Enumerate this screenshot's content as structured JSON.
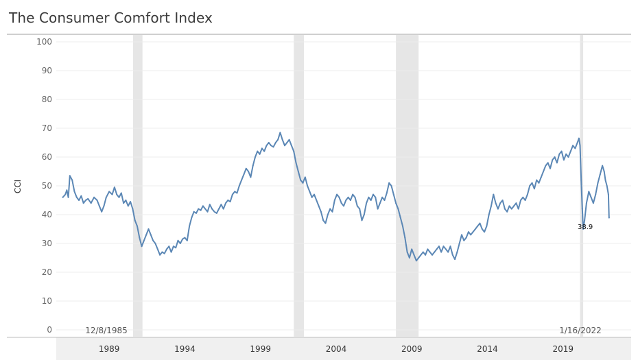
{
  "chart_data": {
    "type": "line",
    "title": "The Consumer Comfort Index",
    "ylabel": "CCI",
    "xlabel": "",
    "ylim": [
      0,
      100
    ],
    "xlim": [
      1985.5,
      2023.5
    ],
    "y_ticks": [
      "0",
      "10",
      "20",
      "30",
      "40",
      "50",
      "60",
      "70",
      "80",
      "90",
      "100"
    ],
    "x_ticks": [
      {
        "x": 1989,
        "label": "1989"
      },
      {
        "x": 1994,
        "label": "1994"
      },
      {
        "x": 1999,
        "label": "1999"
      },
      {
        "x": 2004,
        "label": "2004"
      },
      {
        "x": 2009,
        "label": "2009"
      },
      {
        "x": 2014,
        "label": "2014"
      },
      {
        "x": 2019,
        "label": "2019"
      }
    ],
    "grid": true,
    "colors": {
      "line": "#5b87b5",
      "recession": "#e6e6e6",
      "grid": "#ececec",
      "axis_band": "#f0f0f0"
    },
    "recessions": [
      [
        1990.58,
        1991.2
      ],
      [
        2001.2,
        2001.87
      ],
      [
        2007.95,
        2009.45
      ],
      [
        2020.12,
        2020.33
      ]
    ],
    "annotations": {
      "start_date": "12/8/1985",
      "end_date": "1/16/2022",
      "end_value": "38.9"
    },
    "series": [
      {
        "points": [
          [
            1985.93,
            46
          ],
          [
            1986.1,
            47
          ],
          [
            1986.2,
            48.5
          ],
          [
            1986.3,
            46
          ],
          [
            1986.4,
            53.5
          ],
          [
            1986.55,
            52
          ],
          [
            1986.7,
            48
          ],
          [
            1986.85,
            46
          ],
          [
            1987.0,
            45
          ],
          [
            1987.15,
            46.5
          ],
          [
            1987.3,
            44
          ],
          [
            1987.45,
            45
          ],
          [
            1987.6,
            45.5
          ],
          [
            1987.8,
            44
          ],
          [
            1988.0,
            46
          ],
          [
            1988.2,
            45
          ],
          [
            1988.35,
            43
          ],
          [
            1988.5,
            41
          ],
          [
            1988.65,
            43
          ],
          [
            1988.8,
            46
          ],
          [
            1989.0,
            48
          ],
          [
            1989.2,
            47
          ],
          [
            1989.35,
            49.5
          ],
          [
            1989.5,
            47
          ],
          [
            1989.65,
            46
          ],
          [
            1989.8,
            47.5
          ],
          [
            1989.95,
            44
          ],
          [
            1990.1,
            45
          ],
          [
            1990.25,
            43
          ],
          [
            1990.4,
            44.5
          ],
          [
            1990.55,
            42
          ],
          [
            1990.7,
            38
          ],
          [
            1990.85,
            36
          ],
          [
            1991.0,
            32
          ],
          [
            1991.15,
            29
          ],
          [
            1991.3,
            31
          ],
          [
            1991.45,
            33
          ],
          [
            1991.6,
            35
          ],
          [
            1991.75,
            33
          ],
          [
            1991.9,
            31
          ],
          [
            1992.05,
            30
          ],
          [
            1992.2,
            28
          ],
          [
            1992.35,
            26
          ],
          [
            1992.5,
            27
          ],
          [
            1992.65,
            26.5
          ],
          [
            1992.8,
            28
          ],
          [
            1992.95,
            29
          ],
          [
            1993.1,
            27
          ],
          [
            1993.25,
            29
          ],
          [
            1993.4,
            28.5
          ],
          [
            1993.55,
            31
          ],
          [
            1993.7,
            30
          ],
          [
            1993.85,
            31.5
          ],
          [
            1994.0,
            32
          ],
          [
            1994.15,
            31
          ],
          [
            1994.3,
            36
          ],
          [
            1994.45,
            39
          ],
          [
            1994.6,
            41
          ],
          [
            1994.75,
            40.5
          ],
          [
            1994.9,
            42
          ],
          [
            1995.05,
            41.5
          ],
          [
            1995.2,
            43
          ],
          [
            1995.35,
            42
          ],
          [
            1995.5,
            41
          ],
          [
            1995.65,
            43.5
          ],
          [
            1995.8,
            42
          ],
          [
            1995.95,
            41
          ],
          [
            1996.1,
            40.5
          ],
          [
            1996.25,
            42
          ],
          [
            1996.4,
            43.5
          ],
          [
            1996.55,
            42
          ],
          [
            1996.7,
            44
          ],
          [
            1996.85,
            45
          ],
          [
            1997.0,
            44.5
          ],
          [
            1997.15,
            47
          ],
          [
            1997.3,
            48
          ],
          [
            1997.45,
            47.5
          ],
          [
            1997.6,
            50
          ],
          [
            1997.75,
            52
          ],
          [
            1997.9,
            54
          ],
          [
            1998.05,
            56
          ],
          [
            1998.2,
            55
          ],
          [
            1998.35,
            53
          ],
          [
            1998.5,
            57
          ],
          [
            1998.65,
            60
          ],
          [
            1998.8,
            62
          ],
          [
            1998.95,
            61
          ],
          [
            1999.1,
            63
          ],
          [
            1999.25,
            62
          ],
          [
            1999.4,
            64
          ],
          [
            1999.55,
            65
          ],
          [
            1999.7,
            64
          ],
          [
            1999.85,
            63.5
          ],
          [
            2000.0,
            65
          ],
          [
            2000.15,
            66
          ],
          [
            2000.3,
            68.5
          ],
          [
            2000.45,
            66
          ],
          [
            2000.6,
            64
          ],
          [
            2000.75,
            65
          ],
          [
            2000.9,
            66
          ],
          [
            2001.05,
            64
          ],
          [
            2001.2,
            62
          ],
          [
            2001.35,
            58
          ],
          [
            2001.5,
            55
          ],
          [
            2001.65,
            52
          ],
          [
            2001.8,
            51
          ],
          [
            2001.95,
            53
          ],
          [
            2002.1,
            50
          ],
          [
            2002.25,
            48
          ],
          [
            2002.4,
            46
          ],
          [
            2002.55,
            47
          ],
          [
            2002.7,
            45
          ],
          [
            2002.85,
            43
          ],
          [
            2003.0,
            41
          ],
          [
            2003.15,
            38
          ],
          [
            2003.3,
            37
          ],
          [
            2003.45,
            40
          ],
          [
            2003.6,
            42
          ],
          [
            2003.75,
            41
          ],
          [
            2003.9,
            45
          ],
          [
            2004.05,
            47
          ],
          [
            2004.2,
            46
          ],
          [
            2004.35,
            44
          ],
          [
            2004.5,
            43
          ],
          [
            2004.65,
            45
          ],
          [
            2004.8,
            46
          ],
          [
            2004.95,
            45
          ],
          [
            2005.1,
            47
          ],
          [
            2005.25,
            46
          ],
          [
            2005.4,
            43
          ],
          [
            2005.55,
            42
          ],
          [
            2005.7,
            38
          ],
          [
            2005.85,
            40
          ],
          [
            2006.0,
            44
          ],
          [
            2006.15,
            46
          ],
          [
            2006.3,
            45
          ],
          [
            2006.45,
            47
          ],
          [
            2006.6,
            46
          ],
          [
            2006.75,
            42
          ],
          [
            2006.9,
            44
          ],
          [
            2007.05,
            46
          ],
          [
            2007.2,
            45
          ],
          [
            2007.35,
            47.5
          ],
          [
            2007.5,
            51
          ],
          [
            2007.65,
            50
          ],
          [
            2007.8,
            47
          ],
          [
            2007.95,
            44
          ],
          [
            2008.1,
            42
          ],
          [
            2008.25,
            39
          ],
          [
            2008.4,
            36
          ],
          [
            2008.55,
            32
          ],
          [
            2008.7,
            27
          ],
          [
            2008.85,
            25
          ],
          [
            2009.0,
            28
          ],
          [
            2009.15,
            26
          ],
          [
            2009.3,
            24
          ],
          [
            2009.45,
            25
          ],
          [
            2009.6,
            26
          ],
          [
            2009.75,
            27
          ],
          [
            2009.9,
            26
          ],
          [
            2010.05,
            28
          ],
          [
            2010.2,
            27
          ],
          [
            2010.35,
            26
          ],
          [
            2010.5,
            27
          ],
          [
            2010.65,
            28
          ],
          [
            2010.8,
            29
          ],
          [
            2010.95,
            27
          ],
          [
            2011.1,
            29
          ],
          [
            2011.25,
            28
          ],
          [
            2011.4,
            27
          ],
          [
            2011.55,
            29
          ],
          [
            2011.7,
            26
          ],
          [
            2011.85,
            24.5
          ],
          [
            2012.0,
            27
          ],
          [
            2012.15,
            30
          ],
          [
            2012.3,
            33
          ],
          [
            2012.45,
            31
          ],
          [
            2012.6,
            32
          ],
          [
            2012.75,
            34
          ],
          [
            2012.9,
            33
          ],
          [
            2013.05,
            34
          ],
          [
            2013.2,
            35
          ],
          [
            2013.35,
            36
          ],
          [
            2013.5,
            37
          ],
          [
            2013.65,
            35
          ],
          [
            2013.8,
            34
          ],
          [
            2013.95,
            36
          ],
          [
            2014.1,
            40
          ],
          [
            2014.25,
            43
          ],
          [
            2014.4,
            47
          ],
          [
            2014.55,
            44
          ],
          [
            2014.7,
            42
          ],
          [
            2014.85,
            44
          ],
          [
            2015.0,
            45
          ],
          [
            2015.15,
            42
          ],
          [
            2015.3,
            41
          ],
          [
            2015.45,
            43
          ],
          [
            2015.6,
            42
          ],
          [
            2015.75,
            43
          ],
          [
            2015.9,
            44
          ],
          [
            2016.05,
            42
          ],
          [
            2016.2,
            45
          ],
          [
            2016.35,
            46
          ],
          [
            2016.5,
            45
          ],
          [
            2016.65,
            47
          ],
          [
            2016.8,
            50
          ],
          [
            2016.95,
            51
          ],
          [
            2017.1,
            49
          ],
          [
            2017.25,
            52
          ],
          [
            2017.4,
            51
          ],
          [
            2017.55,
            53
          ],
          [
            2017.7,
            55
          ],
          [
            2017.85,
            57
          ],
          [
            2018.0,
            58
          ],
          [
            2018.15,
            56
          ],
          [
            2018.3,
            59
          ],
          [
            2018.45,
            60
          ],
          [
            2018.6,
            58
          ],
          [
            2018.75,
            61
          ],
          [
            2018.9,
            62
          ],
          [
            2019.05,
            59
          ],
          [
            2019.2,
            61
          ],
          [
            2019.35,
            60
          ],
          [
            2019.5,
            62
          ],
          [
            2019.65,
            64
          ],
          [
            2019.8,
            63
          ],
          [
            2019.95,
            65
          ],
          [
            2020.05,
            66.5
          ],
          [
            2020.12,
            64
          ],
          [
            2020.2,
            52
          ],
          [
            2020.27,
            42
          ],
          [
            2020.33,
            35
          ],
          [
            2020.42,
            38
          ],
          [
            2020.55,
            44
          ],
          [
            2020.7,
            48
          ],
          [
            2020.85,
            46
          ],
          [
            2021.0,
            44
          ],
          [
            2021.15,
            47
          ],
          [
            2021.3,
            51
          ],
          [
            2021.45,
            54
          ],
          [
            2021.6,
            57
          ],
          [
            2021.72,
            55
          ],
          [
            2021.8,
            52
          ],
          [
            2021.9,
            50
          ],
          [
            2022.0,
            47
          ],
          [
            2022.04,
            38.9
          ]
        ]
      }
    ]
  }
}
